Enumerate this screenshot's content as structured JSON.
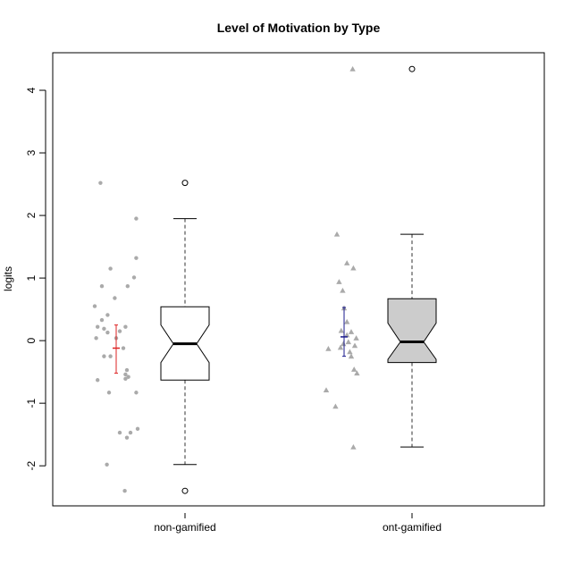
{
  "chart_data": {
    "type": "box",
    "title": "Level of Motivation by Type",
    "xlabel": "",
    "ylabel": "logits",
    "ylim": [
      -2.64,
      4.6
    ],
    "yticks": [
      -2,
      -1,
      0,
      1,
      2,
      3,
      4
    ],
    "grid": false,
    "categories": [
      "non-gamified",
      "ont-gamified"
    ],
    "boxes": [
      {
        "category": "non-gamified",
        "fill": "#ffffff",
        "notched": true,
        "whisker_low": -1.98,
        "q1": -0.63,
        "median": -0.05,
        "q3": 0.54,
        "whisker_high": 1.95,
        "notch_low": -0.35,
        "notch_high": 0.25,
        "outliers": [
          2.52,
          -2.4
        ]
      },
      {
        "category": "ont-gamified",
        "fill": "#cccccc",
        "notched": true,
        "whisker_low": -1.7,
        "q1": -0.35,
        "median": -0.02,
        "q3": 0.67,
        "whisker_high": 1.7,
        "notch_low": -0.3,
        "notch_high": 0.28,
        "outliers": [
          4.34
        ]
      }
    ],
    "jitter": [
      {
        "category": "non-gamified",
        "marker": "circle",
        "color": "#aaaaaa",
        "points": [
          [
            -0.22,
            2.52
          ],
          [
            0.28,
            1.95
          ],
          [
            0.28,
            1.32
          ],
          [
            -0.08,
            1.15
          ],
          [
            0.25,
            1.01
          ],
          [
            -0.2,
            0.87
          ],
          [
            0.16,
            0.87
          ],
          [
            -0.02,
            0.68
          ],
          [
            -0.3,
            0.55
          ],
          [
            -0.12,
            0.41
          ],
          [
            -0.2,
            0.33
          ],
          [
            -0.26,
            0.22
          ],
          [
            -0.17,
            0.19
          ],
          [
            0.13,
            0.22
          ],
          [
            0.05,
            0.15
          ],
          [
            -0.12,
            0.13
          ],
          [
            -0.28,
            0.04
          ],
          [
            0.0,
            0.04
          ],
          [
            0.1,
            -0.12
          ],
          [
            -0.17,
            -0.25
          ],
          [
            -0.08,
            -0.25
          ],
          [
            0.15,
            -0.47
          ],
          [
            0.13,
            -0.54
          ],
          [
            0.17,
            -0.58
          ],
          [
            0.13,
            -0.61
          ],
          [
            -0.26,
            -0.63
          ],
          [
            -0.1,
            -0.83
          ],
          [
            0.28,
            -0.83
          ],
          [
            0.3,
            -1.41
          ],
          [
            0.05,
            -1.47
          ],
          [
            0.2,
            -1.47
          ],
          [
            0.15,
            -1.55
          ],
          [
            -0.13,
            -1.98
          ],
          [
            0.12,
            -2.4
          ]
        ]
      },
      {
        "category": "ont-gamified",
        "marker": "triangle",
        "color": "#aaaaaa",
        "points": [
          [
            0.12,
            4.34
          ],
          [
            -0.1,
            1.7
          ],
          [
            0.04,
            1.24
          ],
          [
            0.13,
            1.16
          ],
          [
            -0.07,
            0.94
          ],
          [
            -0.02,
            0.8
          ],
          [
            0.0,
            0.52
          ],
          [
            0.04,
            0.3
          ],
          [
            -0.04,
            0.16
          ],
          [
            0.1,
            0.14
          ],
          [
            0.04,
            0.09
          ],
          [
            0.17,
            0.04
          ],
          [
            0.06,
            -0.02
          ],
          [
            -0.01,
            -0.05
          ],
          [
            0.15,
            -0.08
          ],
          [
            -0.05,
            -0.11
          ],
          [
            -0.22,
            -0.13
          ],
          [
            0.08,
            -0.18
          ],
          [
            0.1,
            -0.25
          ],
          [
            0.14,
            -0.46
          ],
          [
            0.18,
            -0.52
          ],
          [
            -0.25,
            -0.79
          ],
          [
            -0.12,
            -1.05
          ],
          [
            0.13,
            -1.7
          ]
        ]
      }
    ],
    "mean_ci": [
      {
        "category": "non-gamified",
        "color": "#dd2222",
        "mean": -0.12,
        "low": -0.52,
        "high": 0.25
      },
      {
        "category": "ont-gamified",
        "color": "#1a1a8c",
        "mean": 0.06,
        "low": -0.25,
        "high": 0.53
      }
    ]
  }
}
